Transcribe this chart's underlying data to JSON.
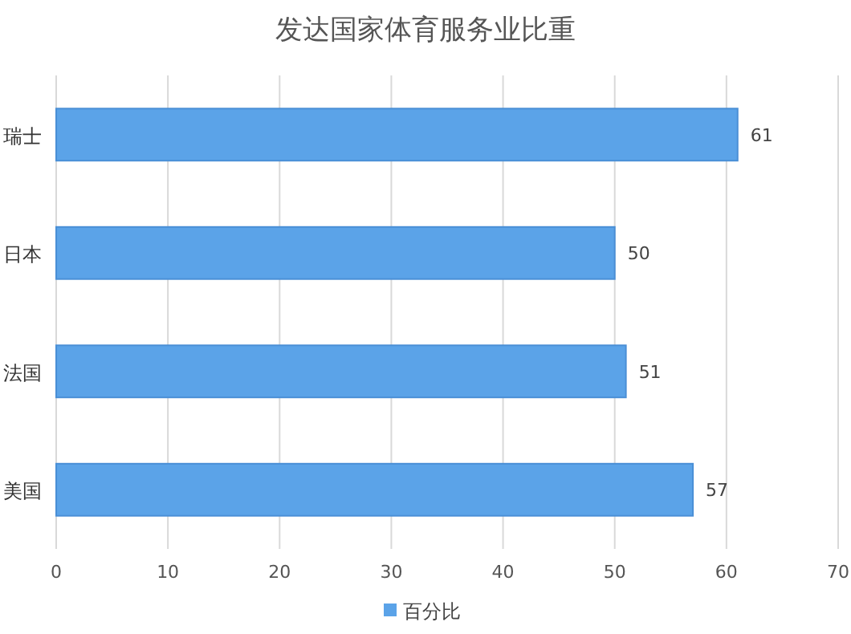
{
  "chart_data": {
    "type": "bar",
    "orientation": "horizontal",
    "title": "发达国家体育服务业比重",
    "categories": [
      "瑞士",
      "日本",
      "法国",
      "美国"
    ],
    "series": [
      {
        "name": "百分比",
        "color": "#5ba3e8",
        "values": [
          61,
          50,
          51,
          57
        ]
      }
    ],
    "xlim": [
      0,
      70
    ],
    "xticks": [
      0,
      10,
      20,
      30,
      40,
      50,
      60,
      70
    ],
    "grid": "x",
    "legend": "bottom",
    "data_labels": true
  }
}
